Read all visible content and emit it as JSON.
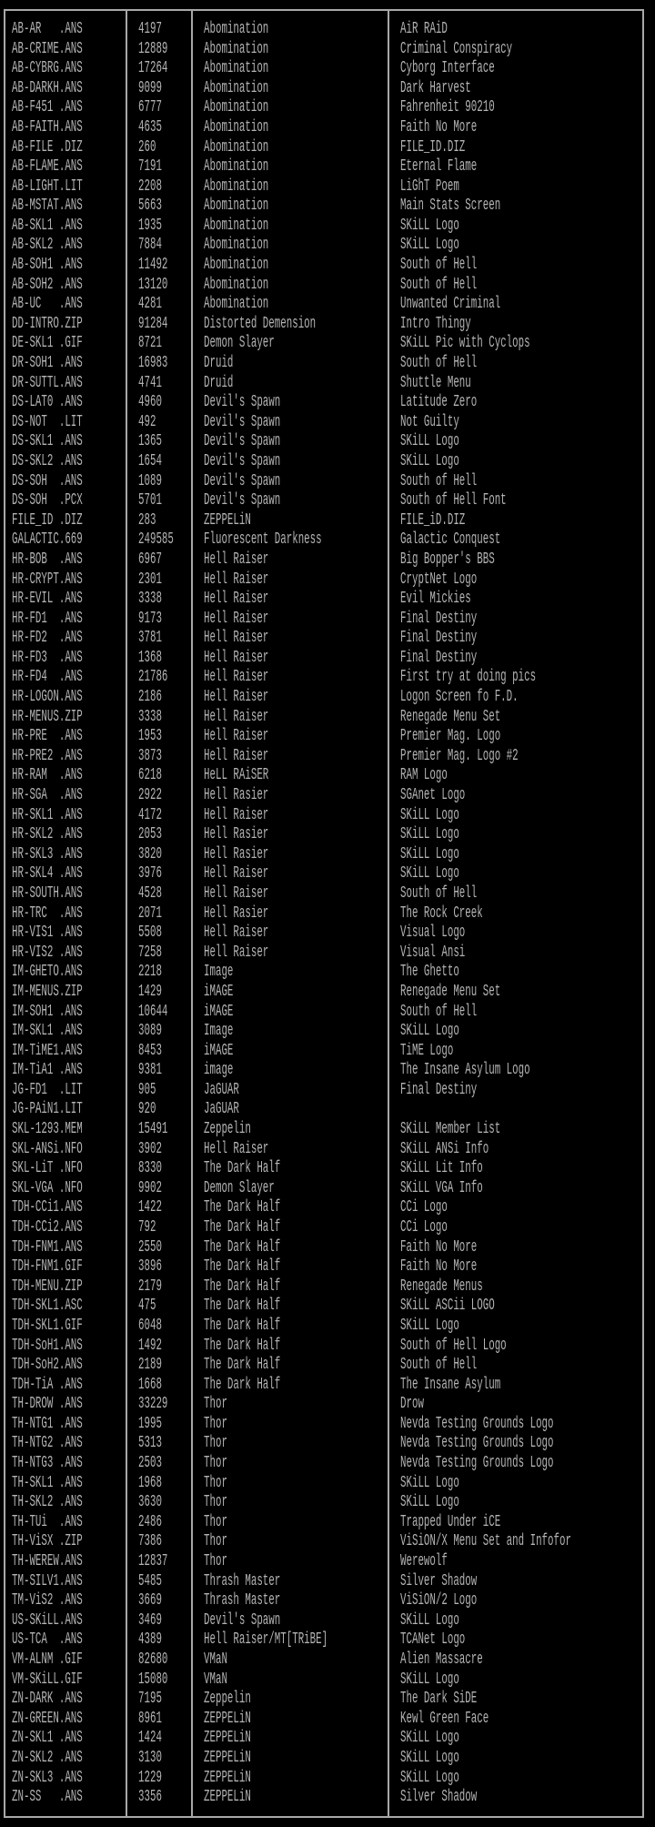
{
  "colors": {
    "background": "#000000",
    "text": "#b4b4b4",
    "border": "#a8a8a8"
  },
  "files": [
    [
      "AB-AR   .ANS",
      "4197",
      "Abomination",
      "AiR RAiD"
    ],
    [
      "AB-CRIME.ANS",
      "12889",
      "Abomination",
      "Criminal Conspiracy"
    ],
    [
      "AB-CYBRG.ANS",
      "17264",
      "Abomination",
      "Cyborg Interface"
    ],
    [
      "AB-DARKH.ANS",
      "9099",
      "Abomination",
      "Dark Harvest"
    ],
    [
      "AB-F451 .ANS",
      "6777",
      "Abomination",
      "Fahrenheit 90210"
    ],
    [
      "AB-FAITH.ANS",
      "4635",
      "Abomination",
      "Faith No More"
    ],
    [
      "AB-FILE .DIZ",
      "260",
      "Abomination",
      "FILE_ID.DIZ"
    ],
    [
      "AB-FLAME.ANS",
      "7191",
      "Abomination",
      "Eternal Flame"
    ],
    [
      "AB-LIGHT.LIT",
      "2208",
      "Abomination",
      "LiGhT Poem"
    ],
    [
      "AB-MSTAT.ANS",
      "5663",
      "Abomination",
      "Main Stats Screen"
    ],
    [
      "AB-SKL1 .ANS",
      "1935",
      "Abomination",
      "SKiLL Logo"
    ],
    [
      "AB-SKL2 .ANS",
      "7884",
      "Abomination",
      "SKiLL Logo"
    ],
    [
      "AB-SOH1 .ANS",
      "11492",
      "Abomination",
      "South of Hell"
    ],
    [
      "AB-SOH2 .ANS",
      "13120",
      "Abomination",
      "South of Hell"
    ],
    [
      "AB-UC   .ANS",
      "4281",
      "Abomination",
      "Unwanted Criminal"
    ],
    [
      "DD-INTRO.ZIP",
      "91284",
      "Distorted Demension",
      "Intro Thingy"
    ],
    [
      "DE-SKL1 .GIF",
      "8721",
      "Demon Slayer",
      "SKiLL Pic with Cyclops"
    ],
    [
      "DR-SOH1 .ANS",
      "16983",
      "Druid",
      "South of Hell"
    ],
    [
      "DR-SUTTL.ANS",
      "4741",
      "Druid",
      "Shuttle Menu"
    ],
    [
      "DS-LAT0 .ANS",
      "4960",
      "Devil's Spawn",
      "Latitude Zero"
    ],
    [
      "DS-NOT  .LIT",
      "492",
      "Devil's Spawn",
      "Not Guilty"
    ],
    [
      "DS-SKL1 .ANS",
      "1365",
      "Devil's Spawn",
      "SKiLL Logo"
    ],
    [
      "DS-SKL2 .ANS",
      "1654",
      "Devil's Spawn",
      "SKiLL Logo"
    ],
    [
      "DS-SOH  .ANS",
      "1089",
      "Devil's Spawn",
      "South of Hell"
    ],
    [
      "DS-SOH  .PCX",
      "5701",
      "Devil's Spawn",
      "South of Hell Font"
    ],
    [
      "FILE_ID .DIZ",
      "283",
      "ZEPPELiN",
      "FILE_iD.DIZ"
    ],
    [
      "GALACTIC.669",
      "249585",
      "Fluorescent Darkness",
      "Galactic Conquest"
    ],
    [
      "HR-BOB  .ANS",
      "6967",
      "Hell Raiser",
      "Big Bopper's BBS"
    ],
    [
      "HR-CRYPT.ANS",
      "2301",
      "Hell Raiser",
      "CryptNet Logo"
    ],
    [
      "HR-EVIL .ANS",
      "3338",
      "Hell Raiser",
      "Evil Mickies"
    ],
    [
      "HR-FD1  .ANS",
      "9173",
      "Hell Raiser",
      "Final Destiny"
    ],
    [
      "HR-FD2  .ANS",
      "3781",
      "Hell Raiser",
      "Final Destiny"
    ],
    [
      "HR-FD3  .ANS",
      "1368",
      "Hell Raiser",
      "Final Destiny"
    ],
    [
      "HR-FD4  .ANS",
      "21786",
      "Hell Raiser",
      "First try at doing pics"
    ],
    [
      "HR-LOGON.ANS",
      "2186",
      "Hell Raiser",
      "Logon Screen fo F.D."
    ],
    [
      "HR-MENUS.ZIP",
      "3338",
      "Hell Raiser",
      "Renegade Menu Set"
    ],
    [
      "HR-PRE  .ANS",
      "1953",
      "Hell Raiser",
      "Premier Mag. Logo"
    ],
    [
      "HR-PRE2 .ANS",
      "3873",
      "Hell Raiser",
      "Premier Mag. Logo #2"
    ],
    [
      "HR-RAM  .ANS",
      "6218",
      "HeLL RAiSER",
      "RAM Logo"
    ],
    [
      "HR-SGA  .ANS",
      "2922",
      "Hell Rasier",
      "SGAnet Logo"
    ],
    [
      "HR-SKL1 .ANS",
      "4172",
      "Hell Raiser",
      "SKiLL Logo"
    ],
    [
      "HR-SKL2 .ANS",
      "2053",
      "Hell Rasier",
      "SKiLL Logo"
    ],
    [
      "HR-SKL3 .ANS",
      "3820",
      "Hell Rasier",
      "SKiLL Logo"
    ],
    [
      "HR-SKL4 .ANS",
      "3976",
      "Hell Raiser",
      "SKiLL Logo"
    ],
    [
      "HR-SOUTH.ANS",
      "4528",
      "Hell Raiser",
      "South of Hell"
    ],
    [
      "HR-TRC  .ANS",
      "2071",
      "Hell Rasier",
      "The Rock Creek"
    ],
    [
      "HR-VIS1 .ANS",
      "5508",
      "Hell Raiser",
      "Visual Logo"
    ],
    [
      "HR-VIS2 .ANS",
      "7258",
      "Hell Raiser",
      "Visual Ansi"
    ],
    [
      "IM-GHETO.ANS",
      "2218",
      "Image",
      "The Ghetto"
    ],
    [
      "IM-MENUS.ZIP",
      "1429",
      "iMAGE",
      "Renegade Menu Set"
    ],
    [
      "IM-SOH1 .ANS",
      "10644",
      "iMAGE",
      "South of Hell"
    ],
    [
      "IM-SKL1 .ANS",
      "3089",
      "Image",
      "SKiLL Logo"
    ],
    [
      "IM-TiME1.ANS",
      "8453",
      "iMAGE",
      "TiME Logo"
    ],
    [
      "IM-TiA1 .ANS",
      "9381",
      "image",
      "The Insane Asylum Logo"
    ],
    [
      "JG-FD1  .LIT",
      "905",
      "JaGUAR",
      "Final Destiny"
    ],
    [
      "JG-PAiN1.LIT",
      "920",
      "JaGUAR",
      ""
    ],
    [
      "SKL-1293.MEM",
      "15491",
      "Zeppelin",
      "SKiLL Member List"
    ],
    [
      "SKL-ANSi.NFO",
      "3902",
      "Hell Raiser",
      "SKiLL ANSi Info"
    ],
    [
      "SKL-LiT .NFO",
      "8330",
      "The Dark Half",
      "SKiLL Lit Info"
    ],
    [
      "SKL-VGA .NFO",
      "9902",
      "Demon Slayer",
      "SKiLL VGA Info"
    ],
    [
      "TDH-CCi1.ANS",
      "1422",
      "The Dark Half",
      "CCi Logo"
    ],
    [
      "TDH-CCi2.ANS",
      "792",
      "The Dark Half",
      "CCi Logo"
    ],
    [
      "TDH-FNM1.ANS",
      "2550",
      "The Dark Half",
      "Faith No More"
    ],
    [
      "TDH-FNM1.GIF",
      "3896",
      "The Dark Half",
      "Faith No More"
    ],
    [
      "TDH-MENU.ZIP",
      "2179",
      "The Dark Half",
      "Renegade Menus"
    ],
    [
      "TDH-SKL1.ASC",
      "475",
      "The Dark Half",
      "SKiLL ASCii LOGO"
    ],
    [
      "TDH-SKL1.GIF",
      "6048",
      "The Dark Half",
      "SKiLL Logo"
    ],
    [
      "TDH-SoH1.ANS",
      "1492",
      "The Dark Half",
      "South of Hell Logo"
    ],
    [
      "TDH-SoH2.ANS",
      "2189",
      "The Dark Half",
      "South of Hell"
    ],
    [
      "TDH-TiA .ANS",
      "1668",
      "The Dark Half",
      "The Insane Asylum"
    ],
    [
      "TH-DROW .ANS",
      "33229",
      "Thor",
      "Drow"
    ],
    [
      "TH-NTG1 .ANS",
      "1995",
      "Thor",
      "Nevda Testing Grounds Logo"
    ],
    [
      "TH-NTG2 .ANS",
      "5313",
      "Thor",
      "Nevda Testing Grounds Logo"
    ],
    [
      "TH-NTG3 .ANS",
      "2503",
      "Thor",
      "Nevda Testing Grounds Logo"
    ],
    [
      "TH-SKL1 .ANS",
      "1968",
      "Thor",
      "SKiLL Logo"
    ],
    [
      "TH-SKL2 .ANS",
      "3630",
      "Thor",
      "SKiLL Logo"
    ],
    [
      "TH-TUi  .ANS",
      "2486",
      "Thor",
      "Trapped Under iCE"
    ],
    [
      "TH-ViSX .ZIP",
      "7386",
      "Thor",
      "ViSiON/X Menu Set and Infofor"
    ],
    [
      "TH-WEREW.ANS",
      "12837",
      "Thor",
      "Werewolf"
    ],
    [
      "TM-SILV1.ANS",
      "5485",
      "Thrash Master",
      "Silver Shadow"
    ],
    [
      "TM-ViS2 .ANS",
      "3669",
      "Thrash Master",
      "ViSiON/2 Logo"
    ],
    [
      "US-SKiLL.ANS",
      "3469",
      "Devil's Spawn",
      "SKiLL Logo"
    ],
    [
      "US-TCA  .ANS",
      "4389",
      "Hell Raiser/MT[TRiBE]",
      "TCANet Logo"
    ],
    [
      "VM-ALNM .GIF",
      "82680",
      "VMaN",
      "Alien Massacre"
    ],
    [
      "VM-SKiLL.GIF",
      "15080",
      "VMaN",
      "SKiLL Logo"
    ],
    [
      "ZN-DARK .ANS",
      "7195",
      "Zeppelin",
      "The Dark SiDE"
    ],
    [
      "ZN-GREEN.ANS",
      "8961",
      "ZEPPELiN",
      "Kewl Green Face"
    ],
    [
      "ZN-SKL1 .ANS",
      "1424",
      "ZEPPELiN",
      "SKiLL Logo"
    ],
    [
      "ZN-SKL2 .ANS",
      "3130",
      "ZEPPELiN",
      "SKiLL Logo"
    ],
    [
      "ZN-SKL3 .ANS",
      "1229",
      "ZEPPELiN",
      "SKiLL Logo"
    ],
    [
      "ZN-SS   .ANS",
      "3356",
      "ZEPPELiN",
      "Silver Shadow"
    ]
  ]
}
